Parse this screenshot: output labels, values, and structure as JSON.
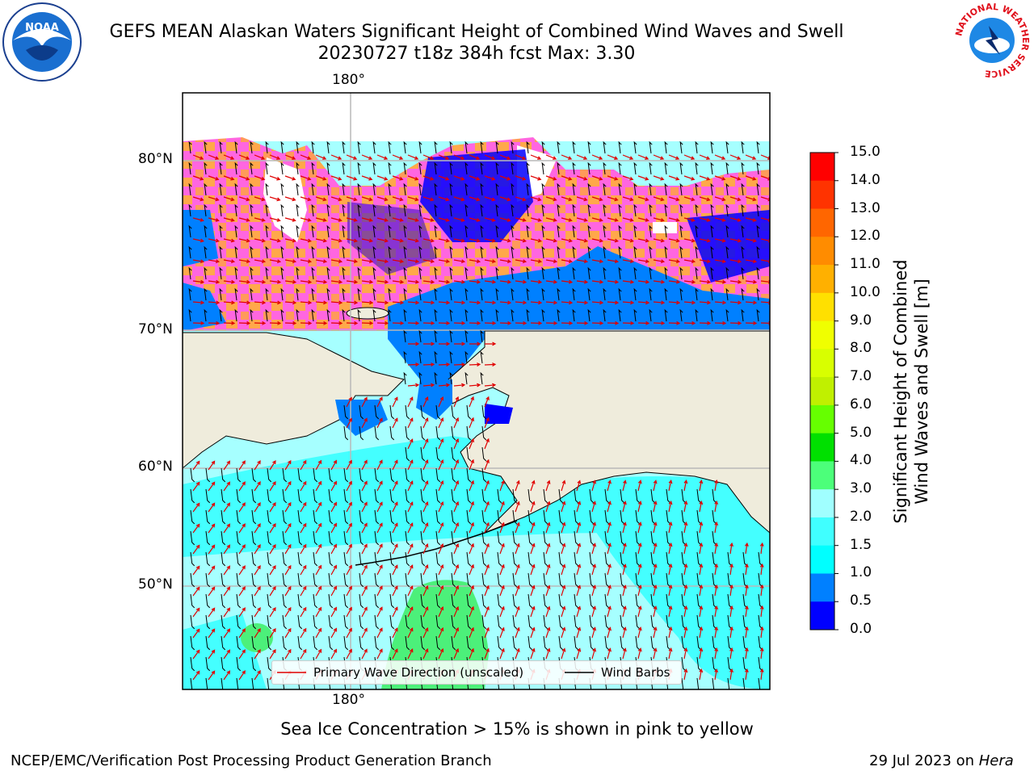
{
  "title_line1": "GEFS MEAN Alaskan Waters Significant Height of Combined Wind Waves and Swell",
  "title_line2": "20230727 t18z 384h fcst   Max: 3.30",
  "lat_labels": [
    "80°N",
    "70°N",
    "60°N",
    "50°N"
  ],
  "lon_label_top": "180°",
  "lon_label_bottom": "180°",
  "legend": {
    "wave_dir": "Primary Wave Direction (unscaled)",
    "wind_barbs": "Wind Barbs"
  },
  "colorbar": {
    "label_line1": "Significant Height of Combined",
    "label_line2": "Wind Waves and Swell [m]",
    "ticks": [
      "15.0",
      "14.0",
      "13.0",
      "12.0",
      "11.0",
      "10.0",
      "9.0",
      "8.0",
      "7.0",
      "6.0",
      "5.0",
      "4.0",
      "3.0",
      "2.0",
      "1.5",
      "1.0",
      "0.5",
      "0.0"
    ],
    "colors": [
      "#ff0000",
      "#ff3300",
      "#ff6600",
      "#ff8c00",
      "#ffb000",
      "#ffe000",
      "#f0ff00",
      "#d8ff00",
      "#c0f000",
      "#66ff00",
      "#00e000",
      "#4cff7a",
      "#a0ffff",
      "#40ffff",
      "#00ffff",
      "#0080ff",
      "#0000ff"
    ]
  },
  "caption": "Sea Ice Concentration > 15% is shown in pink to yellow",
  "footer_left": "NCEP/EMC/Verification Post Processing Product Generation Branch",
  "footer_date": "29 Jul 2023 on",
  "footer_host": "Hera",
  "logos": {
    "noaa": "NOAA",
    "nws": "NATIONAL WEATHER SERVICE"
  }
}
